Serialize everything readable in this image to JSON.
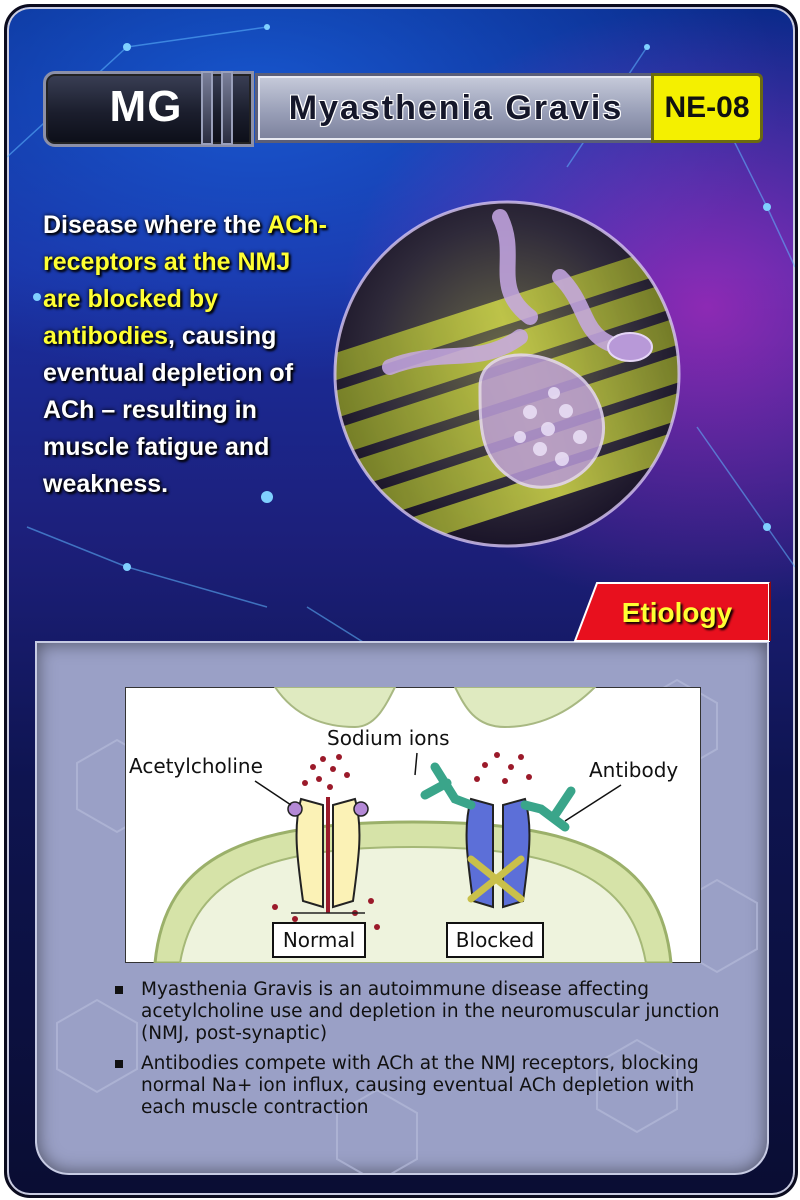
{
  "card": {
    "abbreviation": "MG",
    "title": "Myasthenia Gravis",
    "code": "NE-08"
  },
  "description": {
    "part1": "Disease where the ",
    "highlight1": "ACh-receptors at the NMJ are blocked by antibodies",
    "part2": ", causing eventual depletion of ACh – resulting in muscle fatigue and weakness."
  },
  "section": {
    "label": "Etiology"
  },
  "diagram": {
    "labels": {
      "sodium": "Sodium ions",
      "acetylcholine": "Acetylcholine",
      "antibody": "Antibody",
      "normal": "Normal",
      "blocked": "Blocked"
    }
  },
  "bullets": [
    "Myasthenia Gravis is an autoimmune disease affecting acetylcholine use and depletion in the neuromuscular junction (NMJ, post-synaptic)",
    "Antibodies compete with ACh at the NMJ receptors, blocking normal Na+ ion influx, causing eventual ACh depletion with each muscle contraction"
  ],
  "colors": {
    "highlight": "#ffff33",
    "code_badge": "#f4f000",
    "section_tab": "#e8101e",
    "panel": "#9aa0c6"
  }
}
